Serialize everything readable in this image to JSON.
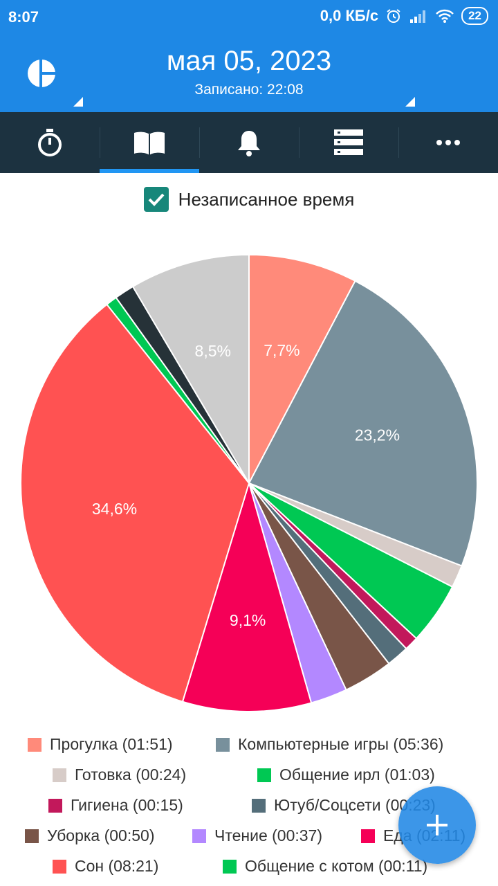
{
  "status_bar": {
    "time": "8:07",
    "network_speed": "0,0 КБ/с",
    "battery": "22"
  },
  "header": {
    "date": "мая 05, 2023",
    "recorded": "Записано: 22:08"
  },
  "tabs": [
    {
      "icon": "stopwatch-icon",
      "active": false
    },
    {
      "icon": "book-icon",
      "active": true
    },
    {
      "icon": "bell-icon",
      "active": false
    },
    {
      "icon": "list-icon",
      "active": false
    },
    {
      "icon": "more-icon",
      "active": false
    }
  ],
  "filter": {
    "label": "Незаписанное время",
    "checked": true
  },
  "chart_data": {
    "type": "pie",
    "slices": [
      {
        "label": "Прогулка (01:51)",
        "value": 7.7,
        "color": "#ff8a7a",
        "display": "7,7%"
      },
      {
        "label": "Компьютерные игры  (05:36)",
        "value": 23.2,
        "color": "#78909c",
        "display": "23,2%"
      },
      {
        "label": "Готовка (00:24)",
        "value": 1.6,
        "color": "#d7ccc8",
        "display": ""
      },
      {
        "label": "Общение ирл (01:03)",
        "value": 4.4,
        "color": "#00c853",
        "display": ""
      },
      {
        "label": "Гигиена  (00:15)",
        "value": 1.0,
        "color": "#c2185b",
        "display": ""
      },
      {
        "label": "Ютуб/Соцсети (00:23)",
        "value": 1.6,
        "color": "#546e7a",
        "display": ""
      },
      {
        "label": "Уборка (00:50)",
        "value": 3.5,
        "color": "#795548",
        "display": ""
      },
      {
        "label": "Чтение (00:37)",
        "value": 2.6,
        "color": "#b388ff",
        "display": ""
      },
      {
        "label": "Еда (02:11)",
        "value": 9.1,
        "color": "#f50057",
        "display": "9,1%"
      },
      {
        "label": "Сон (08:21)",
        "value": 34.6,
        "color": "#ff5252",
        "display": "34,6%"
      },
      {
        "label": "Общение с котом (00:11)",
        "value": 0.8,
        "color": "#00c853",
        "display": ""
      },
      {
        "label": "",
        "value": 1.4,
        "color": "#263238",
        "display": ""
      },
      {
        "label": "",
        "value": 8.5,
        "color": "#cccccc",
        "display": "8,5%"
      }
    ]
  },
  "legend": [
    {
      "label": "Прогулка (01:51)",
      "color": "#ff8a7a"
    },
    {
      "label": "Компьютерные игры  (05:36)",
      "color": "#78909c"
    },
    {
      "label": "Готовка (00:24)",
      "color": "#d7ccc8"
    },
    {
      "label": "Общение ирл (01:03)",
      "color": "#00c853"
    },
    {
      "label": "Гигиена  (00:15)",
      "color": "#c2185b"
    },
    {
      "label": "Ютуб/Соцсети (00:23)",
      "color": "#546e7a"
    },
    {
      "label": "Уборка (00:50)",
      "color": "#795548"
    },
    {
      "label": "Чтение (00:37)",
      "color": "#b388ff"
    },
    {
      "label": "Еда (02:11)",
      "color": "#f50057"
    },
    {
      "label": "Сон (08:21)",
      "color": "#ff5252"
    },
    {
      "label": "Общение с котом (00:11)",
      "color": "#00c853"
    }
  ],
  "fab": {
    "icon": "plus-icon"
  }
}
